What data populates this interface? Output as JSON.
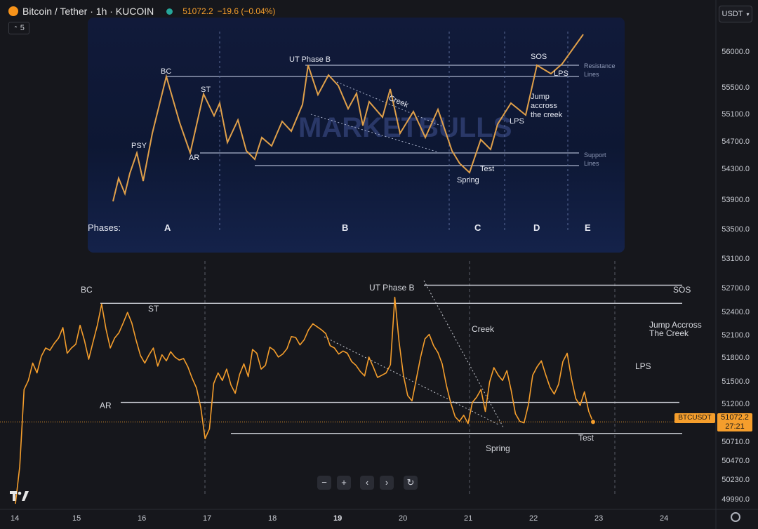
{
  "header": {
    "symbol_title": "Bitcoin / Tether · 1h · KUCOIN",
    "last_price": "51072.2",
    "change": "−19.6 (−0.04%)",
    "currency_button": "USDT",
    "interval_badge": "5"
  },
  "price_axis": {
    "ticks": [
      "56000.0",
      "55500.0",
      "55100.0",
      "54700.0",
      "54300.0",
      "53900.0",
      "53500.0",
      "53100.0",
      "52700.0",
      "52400.0",
      "52100.0",
      "51800.0",
      "51500.0",
      "51200.0",
      "50710.0",
      "50470.0",
      "50230.0",
      "49990.0"
    ]
  },
  "time_axis": {
    "ticks": [
      "14",
      "15",
      "16",
      "17",
      "18",
      "19",
      "20",
      "21",
      "22",
      "23",
      "24"
    ]
  },
  "price_marker": {
    "symbol": "BTCUSDT",
    "price": "51072.2",
    "countdown": "27:21"
  },
  "chart_annotations": {
    "bc": "BC",
    "st": "ST",
    "ar": "AR",
    "ut_phase_b": "UT Phase B",
    "sos": "SOS",
    "creek": "Creek",
    "jump_line1": "Jump Accross",
    "jump_line2": "The Creek",
    "lps": "LPS",
    "spring": "Spring",
    "test": "Test"
  },
  "inset": {
    "watermark": "MARKETBULLS",
    "labels": {
      "psy": "PSY",
      "bc": "BC",
      "ar": "AR",
      "st": "ST",
      "ut_phase_b": "UT Phase B",
      "creek": "Creek",
      "spring": "Spring",
      "test": "Test",
      "lps1": "LPS",
      "lps2": "LPS",
      "sos": "SOS",
      "jump1": "Jump",
      "jump2": "accross",
      "jump3": "the creek",
      "resistance1": "Resistance",
      "resistance2": "Lines",
      "support1": "Support",
      "support2": "Lines"
    },
    "phases_label": "Phases:",
    "phases": [
      "A",
      "B",
      "C",
      "D",
      "E"
    ]
  },
  "controls": {
    "zoom_out": "−",
    "zoom_in": "+",
    "prev": "‹",
    "next": "›",
    "reset": "↻"
  },
  "colors": {
    "price_line": "#f59e2c",
    "background": "#16171c",
    "levels": "#c9ccd3"
  },
  "chart_data": {
    "type": "line",
    "series": [
      {
        "values": [
          49990,
          50480,
          51500,
          51620,
          51850,
          51720,
          51940,
          52050,
          52020,
          52110,
          52180,
          52320,
          51980,
          52050,
          52100,
          52350,
          52150,
          51900,
          52130,
          52350,
          52630,
          52300,
          52050,
          52180,
          52250,
          52380,
          52520,
          52380,
          52150,
          51950,
          51850,
          51960,
          52050,
          51810,
          51960,
          51880,
          52000,
          51930,
          51890,
          51910,
          51800,
          51650,
          51520,
          51260,
          50850,
          50980,
          51580,
          51720,
          51620,
          51770,
          51560,
          51450,
          51700,
          51840,
          51670,
          52030,
          51980,
          51770,
          51820,
          52060,
          52020,
          51930,
          51970,
          52040,
          52200,
          52190,
          52090,
          52160,
          52290,
          52370,
          52330,
          52290,
          52240,
          52080,
          52050,
          51970,
          52010,
          51980,
          51870,
          51820,
          51740,
          51680,
          51930,
          51800,
          51660,
          51690,
          51720,
          51830,
          52720,
          52130,
          51690,
          51420,
          51350,
          51640,
          51930,
          52170,
          52230,
          52080,
          51990,
          51840,
          51550,
          51320,
          51140,
          51080,
          51160,
          51050,
          51330,
          51400,
          51500,
          51210,
          51600,
          51790,
          51690,
          51620,
          51750,
          51490,
          51180,
          51080,
          51060,
          51300,
          51690,
          51800,
          51880,
          51700,
          51530,
          51440,
          51570,
          51870,
          51980,
          51640,
          51380,
          51290,
          51470,
          51210,
          51072
        ]
      }
    ],
    "ylim": [
      49990,
      53200
    ],
    "x_ticks": [
      "14",
      "15",
      "16",
      "17",
      "18",
      "19",
      "20",
      "21",
      "22",
      "23",
      "24"
    ]
  }
}
